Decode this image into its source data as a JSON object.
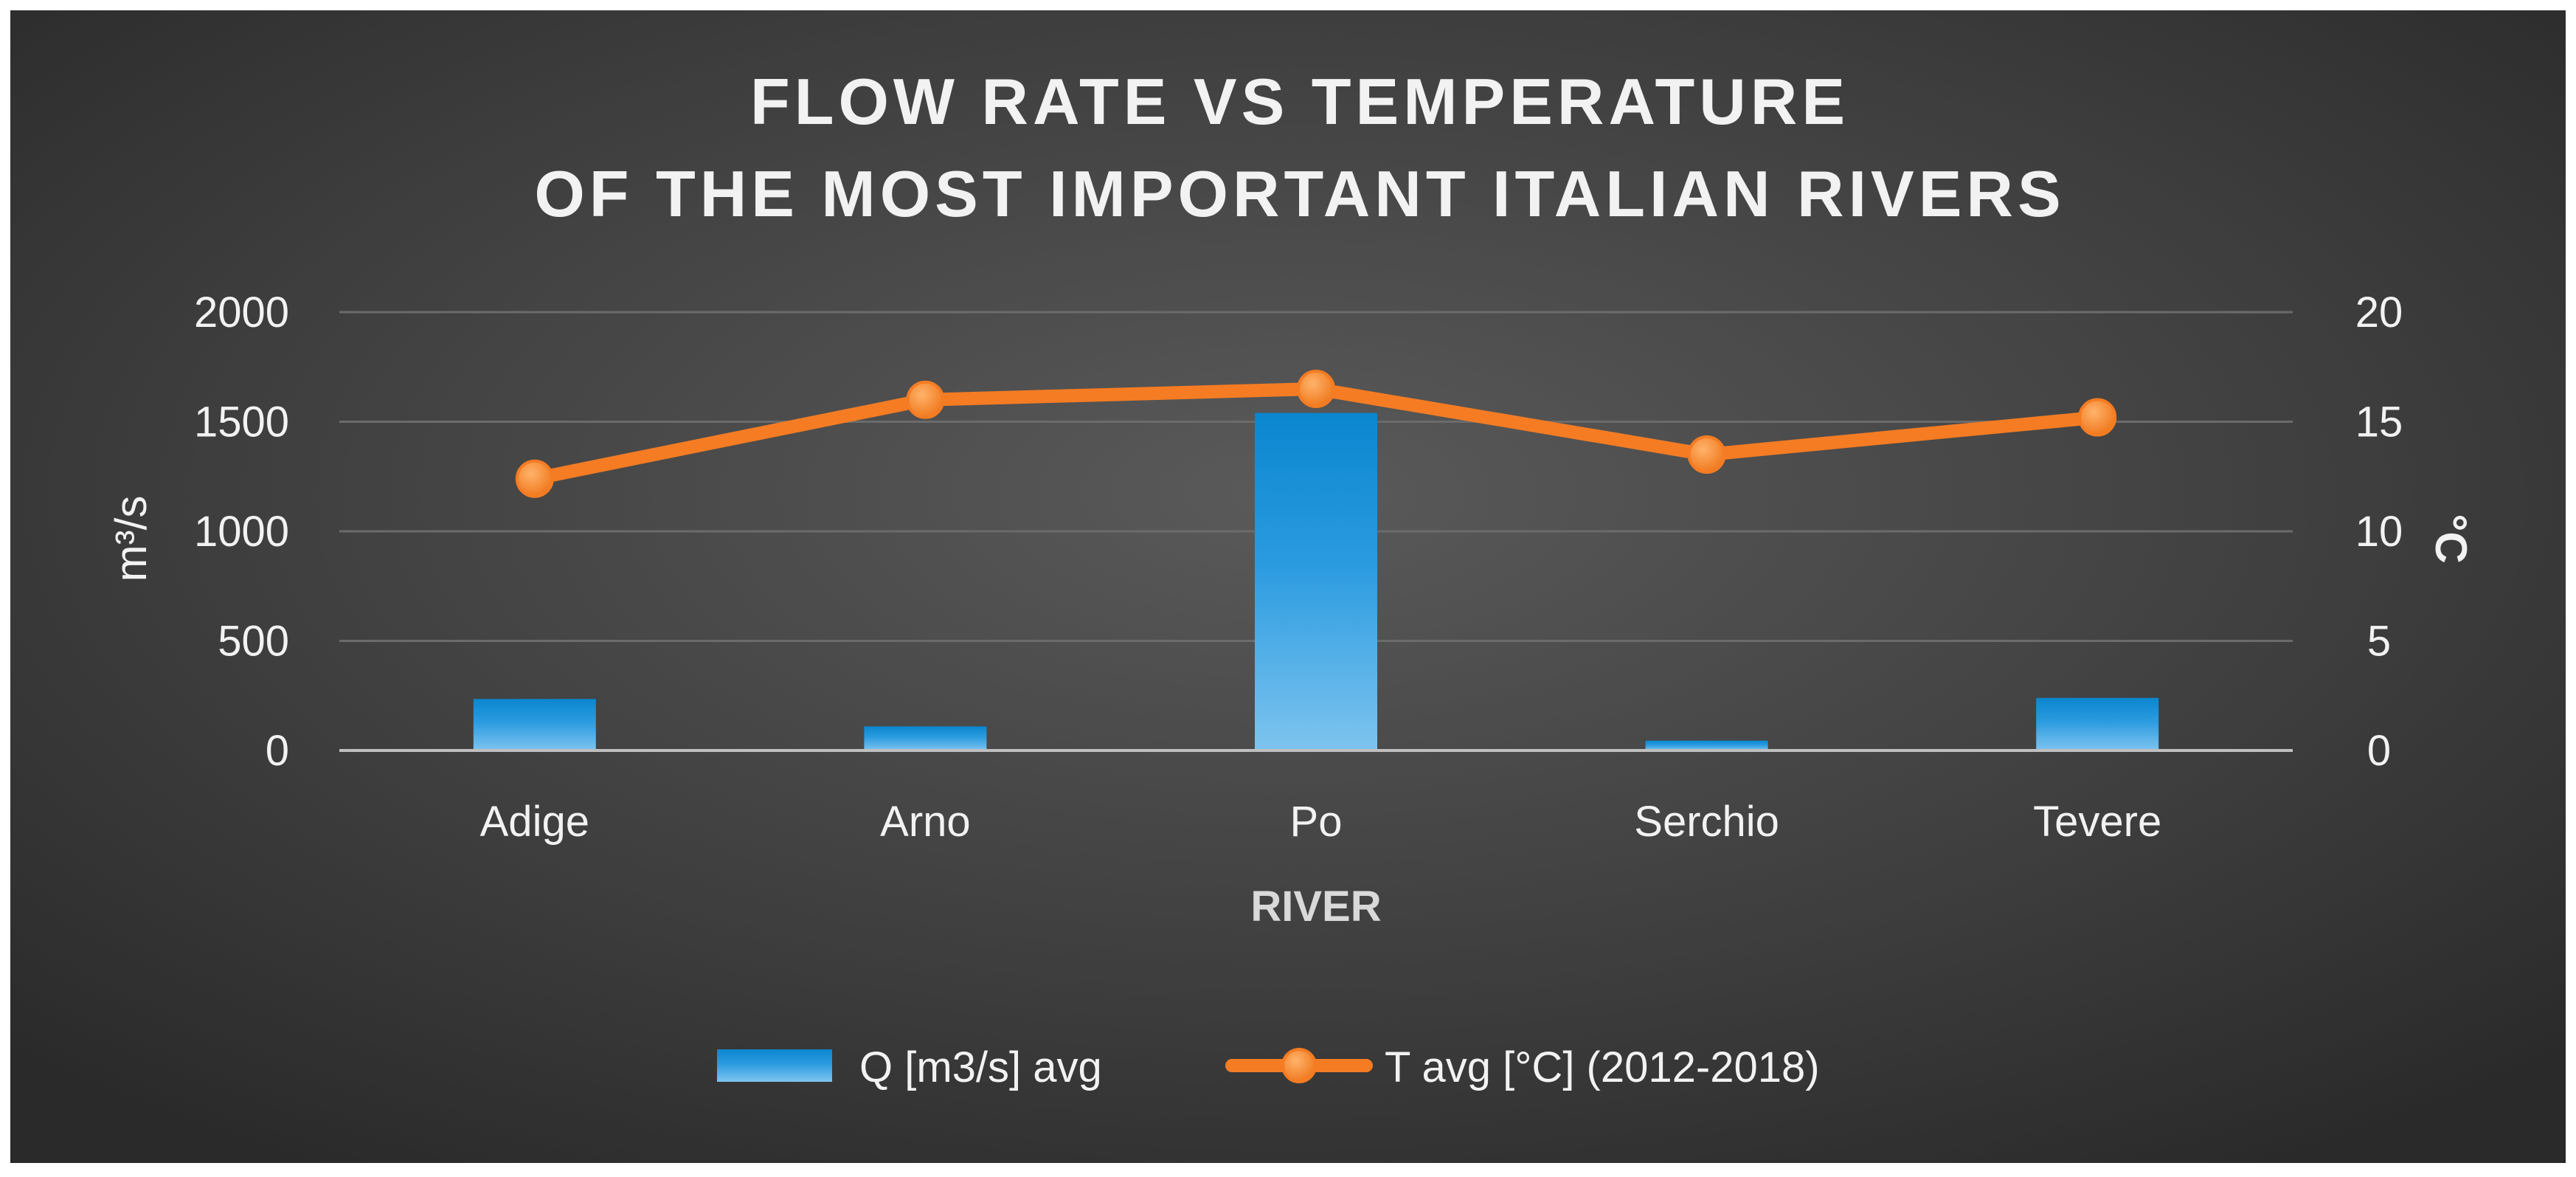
{
  "chart_data": {
    "type": "bar+line",
    "title_lines": [
      "FLOW RATE VS TEMPERATURE",
      "OF THE MOST IMPORTANT ITALIAN RIVERS"
    ],
    "xlabel": "RIVER",
    "ylabel_left": "m³/s",
    "ylabel_right": "°C",
    "categories": [
      "Adige",
      "Arno",
      "Po",
      "Serchio",
      "Tevere"
    ],
    "y_left": {
      "lim": [
        0,
        2000
      ],
      "ticks": [
        0,
        500,
        1000,
        1500,
        2000
      ]
    },
    "y_right": {
      "lim": [
        0,
        20
      ],
      "ticks": [
        0,
        5,
        10,
        15,
        20
      ]
    },
    "series": [
      {
        "name": "Q [m3/s] avg",
        "type": "bar",
        "axis": "left",
        "color": "#1e8fd6",
        "values": [
          235,
          110,
          1540,
          45,
          240
        ]
      },
      {
        "name": "T avg [°C] (2012-2018)",
        "type": "line",
        "axis": "right",
        "color": "#f57c23",
        "values": [
          12.4,
          16.0,
          16.5,
          13.5,
          15.2
        ]
      }
    ],
    "grid": true,
    "legend": "bottom-center"
  }
}
